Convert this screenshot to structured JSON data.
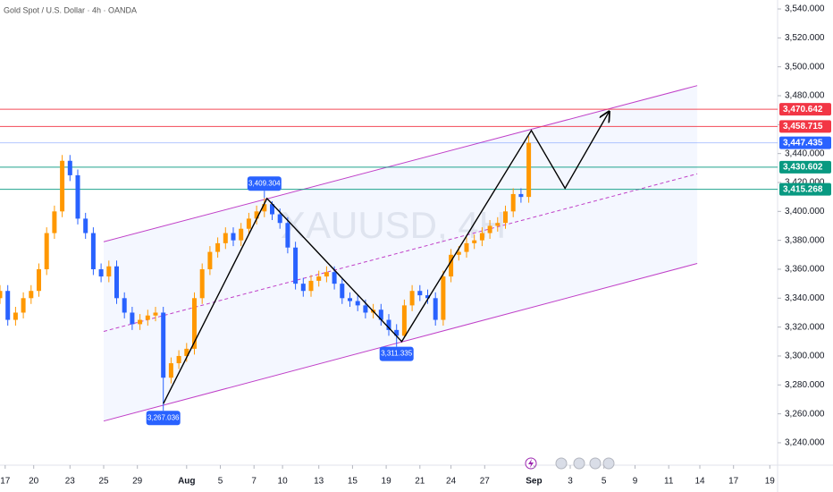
{
  "chart_data": {
    "type": "candlestick",
    "title": "Gold Spot / U.S. Dollar · 4h · OANDA",
    "watermark": "XAUUSD, 4H",
    "up_color": "#ff9800",
    "down_color": "#2962ff",
    "xlim": [
      0,
      300
    ],
    "ylim": [
      3224.5,
      3546.2
    ],
    "yticks": [
      {
        "value": 3240,
        "label": "3,240.000"
      },
      {
        "value": 3260,
        "label": "3,260.000"
      },
      {
        "value": 3280,
        "label": "3,280.000"
      },
      {
        "value": 3300,
        "label": "3,300.000"
      },
      {
        "value": 3320,
        "label": "3,320.000"
      },
      {
        "value": 3340,
        "label": "3,340.000"
      },
      {
        "value": 3360,
        "label": "3,360.000"
      },
      {
        "value": 3380,
        "label": "3,380.000"
      },
      {
        "value": 3400,
        "label": "3,400.000"
      },
      {
        "value": 3420,
        "label": "3,420.000"
      },
      {
        "value": 3440,
        "label": "3,440.000"
      },
      {
        "value": 3460,
        "label": "3,460.000"
      },
      {
        "value": 3480,
        "label": "3,480.000"
      },
      {
        "value": 3500,
        "label": "3,500.000"
      },
      {
        "value": 3520,
        "label": "3,520.000"
      },
      {
        "value": 3540,
        "label": "3,540.000"
      }
    ],
    "xticks": [
      {
        "value": 2,
        "label": "17"
      },
      {
        "value": 13,
        "label": "20"
      },
      {
        "value": 27,
        "label": "23"
      },
      {
        "value": 40,
        "label": "25"
      },
      {
        "value": 53,
        "label": "29"
      },
      {
        "value": 72,
        "label": "Aug"
      },
      {
        "value": 85,
        "label": "5"
      },
      {
        "value": 98,
        "label": "7"
      },
      {
        "value": 109,
        "label": "10"
      },
      {
        "value": 123,
        "label": "13"
      },
      {
        "value": 136,
        "label": "15"
      },
      {
        "value": 149,
        "label": "19"
      },
      {
        "value": 162,
        "label": "21"
      },
      {
        "value": 174,
        "label": "24"
      },
      {
        "value": 187,
        "label": "27"
      },
      {
        "value": 206,
        "label": "Sep"
      },
      {
        "value": 220,
        "label": "3"
      },
      {
        "value": 233,
        "label": "5"
      },
      {
        "value": 245,
        "label": "9"
      },
      {
        "value": 258,
        "label": "11"
      },
      {
        "value": 270,
        "label": "14"
      },
      {
        "value": 283,
        "label": "17"
      },
      {
        "value": 297,
        "label": "19"
      }
    ],
    "x": [
      0,
      3,
      6,
      9,
      12,
      15,
      18,
      21,
      24,
      27,
      30,
      33,
      36,
      39,
      42,
      45,
      48,
      51,
      54,
      57,
      60,
      63,
      66,
      69,
      72,
      75,
      78,
      81,
      84,
      87,
      90,
      93,
      96,
      99,
      102,
      105,
      108,
      111,
      114,
      117,
      120,
      123,
      126,
      129,
      132,
      135,
      138,
      141,
      144,
      147,
      150,
      153,
      156,
      159,
      162,
      165,
      168,
      171,
      174,
      177,
      180,
      183,
      186,
      189,
      192,
      195,
      198,
      201,
      204
    ],
    "open": [
      3340,
      3345,
      3325,
      3330,
      3340,
      3345,
      3360,
      3385,
      3400,
      3435,
      3425,
      3395,
      3385,
      3360,
      3355,
      3362,
      3340,
      3330,
      3322,
      3325,
      3328,
      3330,
      3285,
      3295,
      3300,
      3305,
      3340,
      3360,
      3372,
      3378,
      3385,
      3380,
      3388,
      3395,
      3400,
      3405,
      3398,
      3392,
      3375,
      3350,
      3345,
      3352,
      3355,
      3358,
      3350,
      3340,
      3338,
      3335,
      3330,
      3332,
      3325,
      3318,
      3314,
      3335,
      3345,
      3342,
      3340,
      3325,
      3355,
      3370,
      3372,
      3378,
      3380,
      3385,
      3390,
      3392,
      3400,
      3412,
      3410
    ],
    "high": [
      3349,
      3349,
      3334,
      3344,
      3349,
      3364,
      3389,
      3404,
      3439,
      3439,
      3429,
      3399,
      3389,
      3364,
      3366,
      3366,
      3344,
      3334,
      3329,
      3332,
      3334,
      3334,
      3299,
      3304,
      3309,
      3344,
      3364,
      3376,
      3382,
      3389,
      3389,
      3392,
      3399,
      3404,
      3409.304,
      3407,
      3402,
      3396,
      3379,
      3354,
      3356,
      3359,
      3362,
      3362,
      3354,
      3344,
      3342,
      3339,
      3336,
      3336,
      3329,
      3322,
      3339,
      3349,
      3349,
      3346,
      3344,
      3359,
      3374,
      3376,
      3382,
      3384,
      3389,
      3394,
      3396,
      3404,
      3416,
      3416,
      3452
    ],
    "low": [
      3336,
      3321,
      3321,
      3326,
      3336,
      3341,
      3356,
      3381,
      3396,
      3421,
      3391,
      3381,
      3356,
      3351,
      3351,
      3336,
      3326,
      3318,
      3318,
      3321,
      3324,
      3267.036,
      3281,
      3291,
      3296,
      3301,
      3336,
      3356,
      3368,
      3374,
      3376,
      3376,
      3384,
      3391,
      3396,
      3394,
      3388,
      3371,
      3346,
      3341,
      3341,
      3348,
      3351,
      3346,
      3336,
      3334,
      3331,
      3326,
      3326,
      3321,
      3314,
      3311.335,
      3313,
      3331,
      3338,
      3336,
      3321,
      3321,
      3351,
      3366,
      3368,
      3374,
      3376,
      3381,
      3386,
      3388,
      3396,
      3406,
      3406
    ],
    "close": [
      3345,
      3325,
      3330,
      3340,
      3345,
      3360,
      3385,
      3400,
      3435,
      3425,
      3395,
      3385,
      3360,
      3355,
      3362,
      3340,
      3330,
      3322,
      3325,
      3328,
      3330,
      3285,
      3295,
      3300,
      3305,
      3340,
      3360,
      3372,
      3378,
      3385,
      3380,
      3388,
      3395,
      3400,
      3405,
      3398,
      3392,
      3375,
      3350,
      3345,
      3352,
      3355,
      3358,
      3350,
      3340,
      3338,
      3335,
      3330,
      3332,
      3325,
      3318,
      3314,
      3335,
      3345,
      3342,
      3340,
      3325,
      3355,
      3370,
      3372,
      3378,
      3380,
      3385,
      3390,
      3392,
      3400,
      3412,
      3410,
      3447.435
    ],
    "levels": [
      {
        "value": 3470.642,
        "label": "3,470.642",
        "color": "#f23645"
      },
      {
        "value": 3458.715,
        "label": "3,458.715",
        "color": "#f23645"
      },
      {
        "value": 3447.435,
        "label": "3,447.435",
        "color": "#2962ff"
      },
      {
        "value": 3430.602,
        "label": "3,430.602",
        "color": "#089981"
      },
      {
        "value": 3415.268,
        "label": "3,415.268",
        "color": "#089981"
      }
    ],
    "annotations": [
      {
        "x": 102,
        "value": 3409.304,
        "label": "3,409.304",
        "side": "above"
      },
      {
        "x": 153,
        "value": 3311.335,
        "label": "3,311.335",
        "side": "below"
      },
      {
        "x": 63,
        "value": 3267.036,
        "label": "3,267.036",
        "side": "below"
      }
    ],
    "channel": {
      "x": [
        40,
        269
      ],
      "upper": [
        3379,
        3487
      ],
      "middle": [
        3317,
        3426
      ],
      "lower": [
        3255,
        3364
      ],
      "color": "#c040c8"
    },
    "zigzag": {
      "x": [
        63,
        103,
        155,
        205,
        218,
        235
      ],
      "values": [
        3267,
        3409,
        3310,
        3456,
        3416,
        3469
      ]
    }
  }
}
